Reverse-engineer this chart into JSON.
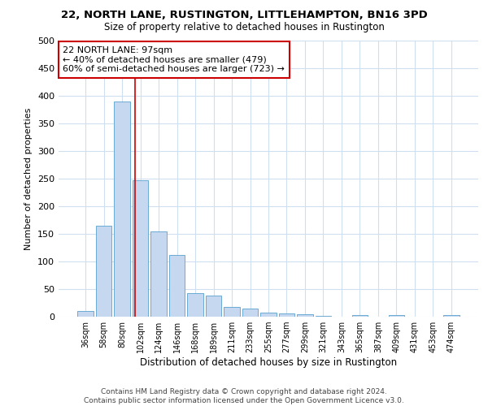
{
  "title": "22, NORTH LANE, RUSTINGTON, LITTLEHAMPTON, BN16 3PD",
  "subtitle": "Size of property relative to detached houses in Rustington",
  "xlabel": "Distribution of detached houses by size in Rustington",
  "ylabel": "Number of detached properties",
  "bar_labels": [
    "36sqm",
    "58sqm",
    "80sqm",
    "102sqm",
    "124sqm",
    "146sqm",
    "168sqm",
    "189sqm",
    "211sqm",
    "233sqm",
    "255sqm",
    "277sqm",
    "299sqm",
    "321sqm",
    "343sqm",
    "365sqm",
    "387sqm",
    "409sqm",
    "431sqm",
    "453sqm",
    "474sqm"
  ],
  "bar_values": [
    10,
    165,
    390,
    247,
    155,
    112,
    42,
    38,
    17,
    14,
    8,
    6,
    4,
    2,
    0,
    3,
    0,
    3,
    0,
    0,
    3
  ],
  "bar_color": "#c5d8f0",
  "bar_edgecolor": "#6aaad4",
  "grid_color": "#d0dff0",
  "background_color": "#ffffff",
  "vline_x": 2.72,
  "vline_color": "#cc0000",
  "annotation_text": "22 NORTH LANE: 97sqm\n← 40% of detached houses are smaller (479)\n60% of semi-detached houses are larger (723) →",
  "annotation_box_color": "#ffffff",
  "annotation_box_edgecolor": "#cc0000",
  "footer_text": "Contains HM Land Registry data © Crown copyright and database right 2024.\nContains public sector information licensed under the Open Government Licence v3.0.",
  "ylim": [
    0,
    500
  ],
  "yticks": [
    0,
    50,
    100,
    150,
    200,
    250,
    300,
    350,
    400,
    450,
    500
  ]
}
